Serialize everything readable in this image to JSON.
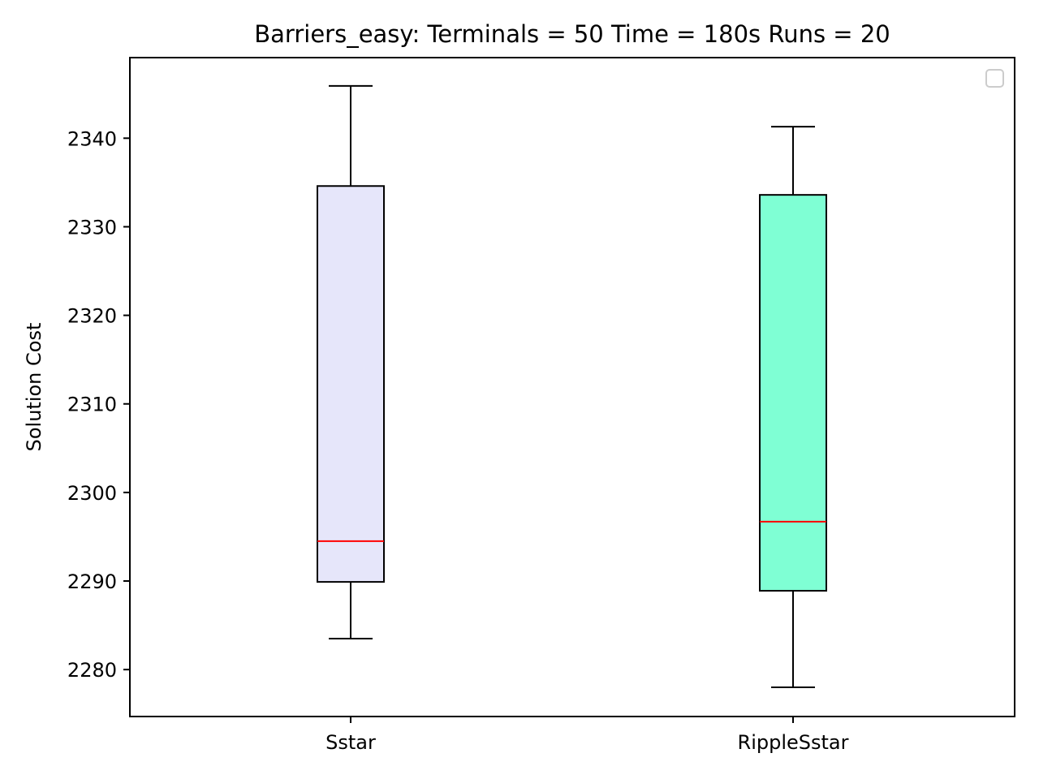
{
  "chart_data": {
    "type": "box",
    "title": "Barriers_easy:  Terminals = 50  Time = 180s  Runs = 20",
    "xlabel": "",
    "ylabel": "Solution Cost",
    "ylim": [
      2274.7,
      2349.1
    ],
    "yticks": [
      2280,
      2290,
      2300,
      2310,
      2320,
      2330,
      2340
    ],
    "grid": false,
    "legend": {
      "location": "top-right",
      "entries": []
    },
    "categories": [
      "Sstar",
      "RippleSstar"
    ],
    "series": [
      {
        "category": "Sstar",
        "whisker_low": 2283.5,
        "q1": 2289.9,
        "median": 2294.5,
        "q3": 2334.6,
        "whisker_high": 2345.9,
        "fill_color": "#e6e6fa"
      },
      {
        "category": "RippleSstar",
        "whisker_low": 2278.0,
        "q1": 2288.9,
        "median": 2296.7,
        "q3": 2333.6,
        "whisker_high": 2341.3,
        "fill_color": "#7fffd4"
      }
    ],
    "colors": {
      "box_edge": "#000000",
      "median_line": "#ff0000",
      "whisker": "#000000",
      "axes_frame": "#000000",
      "legend_frame": "#cccccc"
    }
  }
}
